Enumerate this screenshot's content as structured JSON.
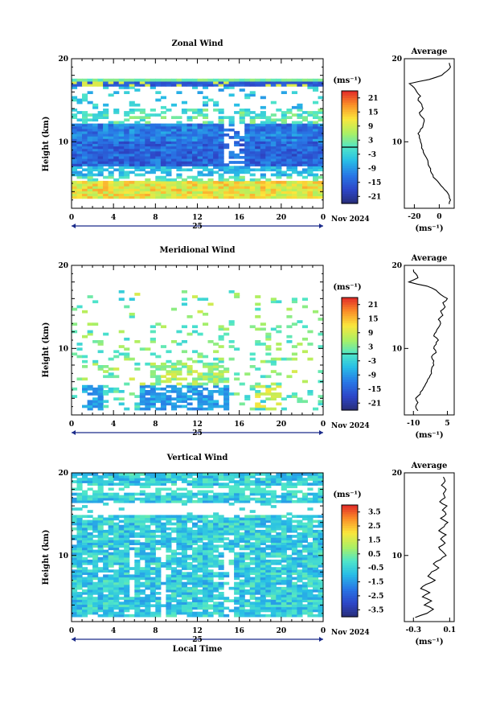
{
  "month_label": "Nov 2024",
  "day_label": "25",
  "x_axis_label": "Local Time",
  "unit_label": "(ms⁻¹)",
  "average_title": "Average",
  "chart_data": [
    {
      "type": "heatmap",
      "title": "Zonal Wind",
      "ylabel": "Height (km)",
      "x_ticks": [
        "0",
        "4",
        "8",
        "12",
        "16",
        "20",
        "0"
      ],
      "x_range": [
        0,
        24
      ],
      "y_ticks": [
        "10",
        "20"
      ],
      "y_range": [
        2,
        20
      ],
      "colorbar": {
        "ticks": [
          "21",
          "15",
          "9",
          "3",
          "-3",
          "-9",
          "-15",
          "-21"
        ],
        "range": [
          -24,
          24
        ],
        "zero_line": 0
      },
      "profile": {
        "title": "Average",
        "x_ticks": [
          "-20",
          "0"
        ],
        "x_range": [
          -28,
          12
        ],
        "y_ticks": [
          "10",
          "20"
        ],
        "heights": [
          2.5,
          3.0,
          3.5,
          4.0,
          4.5,
          5.0,
          5.5,
          6.0,
          6.5,
          7.0,
          7.5,
          8.0,
          8.5,
          9.0,
          9.5,
          10.0,
          10.5,
          11.0,
          11.5,
          12.0,
          12.5,
          13.0,
          13.5,
          14.0,
          14.5,
          15.0,
          15.5,
          16.0,
          16.5,
          17.0,
          17.5,
          18.0,
          18.5,
          19.0,
          19.5
        ],
        "values": [
          8,
          9,
          8,
          6,
          3,
          0,
          -3,
          -5,
          -7,
          -8,
          -9,
          -10,
          -12,
          -13,
          -14,
          -15,
          -16,
          -17,
          -15,
          -13,
          -12,
          -14,
          -16,
          -13,
          -14,
          -17,
          -15,
          -18,
          -20,
          -24,
          -8,
          2,
          6,
          9,
          8
        ]
      },
      "description": "Westerly wind structure from 5 to 17 km with strong negative speeds (blue) near 8–12 km and positive speeds (yellow/orange) below 5 km"
    },
    {
      "type": "heatmap",
      "title": "Meridional Wind",
      "ylabel": "Height (km)",
      "x_ticks": [
        "0",
        "4",
        "8",
        "12",
        "16",
        "20",
        "0"
      ],
      "x_range": [
        0,
        24
      ],
      "y_ticks": [
        "10",
        "20"
      ],
      "y_range": [
        2,
        20
      ],
      "colorbar": {
        "ticks": [
          "21",
          "15",
          "9",
          "3",
          "-3",
          "-9",
          "-15",
          "-21"
        ],
        "range": [
          -24,
          24
        ],
        "zero_line": 0
      },
      "profile": {
        "title": "Average",
        "x_ticks": [
          "-10",
          "5"
        ],
        "x_range": [
          -14,
          8
        ],
        "y_ticks": [
          "10",
          "20"
        ],
        "heights": [
          2.5,
          3.0,
          3.5,
          4.0,
          4.5,
          5.0,
          5.5,
          6.0,
          6.5,
          7.0,
          7.5,
          8.0,
          8.5,
          9.0,
          9.5,
          10.0,
          10.5,
          11.0,
          11.5,
          12.0,
          12.5,
          13.0,
          13.5,
          14.0,
          14.5,
          15.0,
          15.5,
          16.0,
          16.5,
          17.0,
          17.5,
          18.0,
          18.5,
          19.0,
          19.5
        ],
        "values": [
          -8,
          -9,
          -8,
          -9,
          -7,
          -6,
          -5,
          -4,
          -3,
          -2,
          -2,
          -1,
          -1,
          -2,
          0,
          -1,
          0,
          1,
          -1,
          0,
          1,
          2,
          1,
          3,
          2,
          4,
          3,
          5,
          2,
          0,
          -4,
          -12,
          -8,
          -9,
          -10
        ]
      },
      "description": "Scattered mostly weak winds with blue (negative) patches at 3–5 km and a few yellow positive patches"
    },
    {
      "type": "heatmap",
      "title": "Vertical Wind",
      "ylabel": "Height (km)",
      "xlabel": "Local Time",
      "x_ticks": [
        "0",
        "4",
        "8",
        "12",
        "16",
        "20",
        "0"
      ],
      "x_range": [
        0,
        24
      ],
      "y_ticks": [
        "10",
        "20"
      ],
      "y_range": [
        2,
        20
      ],
      "colorbar": {
        "ticks": [
          "3.5",
          "2.5",
          "1.5",
          "0.5",
          "-0.5",
          "-1.5",
          "-2.5",
          "-3.5"
        ],
        "range": [
          -4,
          4
        ]
      },
      "profile": {
        "title": "Average",
        "x_ticks": [
          "-0.3",
          "0.1"
        ],
        "x_range": [
          -0.4,
          0.15
        ],
        "y_ticks": [
          "10",
          "20"
        ],
        "heights": [
          2.5,
          3.0,
          3.5,
          4.0,
          4.5,
          5.0,
          5.5,
          6.0,
          6.5,
          7.0,
          7.5,
          8.0,
          8.5,
          9.0,
          9.5,
          10.0,
          10.5,
          11.0,
          11.5,
          12.0,
          12.5,
          13.0,
          13.5,
          14.0,
          14.5,
          15.0,
          15.5,
          16.0,
          16.5,
          17.0,
          17.5,
          18.0,
          18.5,
          19.0,
          19.5
        ],
        "values": [
          -0.28,
          -0.15,
          -0.08,
          -0.18,
          -0.1,
          -0.2,
          -0.12,
          -0.22,
          -0.16,
          -0.06,
          -0.14,
          -0.1,
          -0.02,
          -0.08,
          0.0,
          0.06,
          0.02,
          -0.02,
          0.05,
          0.0,
          0.06,
          -0.02,
          0.04,
          0.08,
          0.0,
          0.06,
          0.02,
          0.07,
          -0.01,
          0.05,
          0.03,
          0.06,
          0.01,
          0.05,
          0.03
        ]
      },
      "description": "Weak vertical wind (light cyan to green, near zero) filling most of 2–18 km with gaps around 15–16 km"
    }
  ]
}
